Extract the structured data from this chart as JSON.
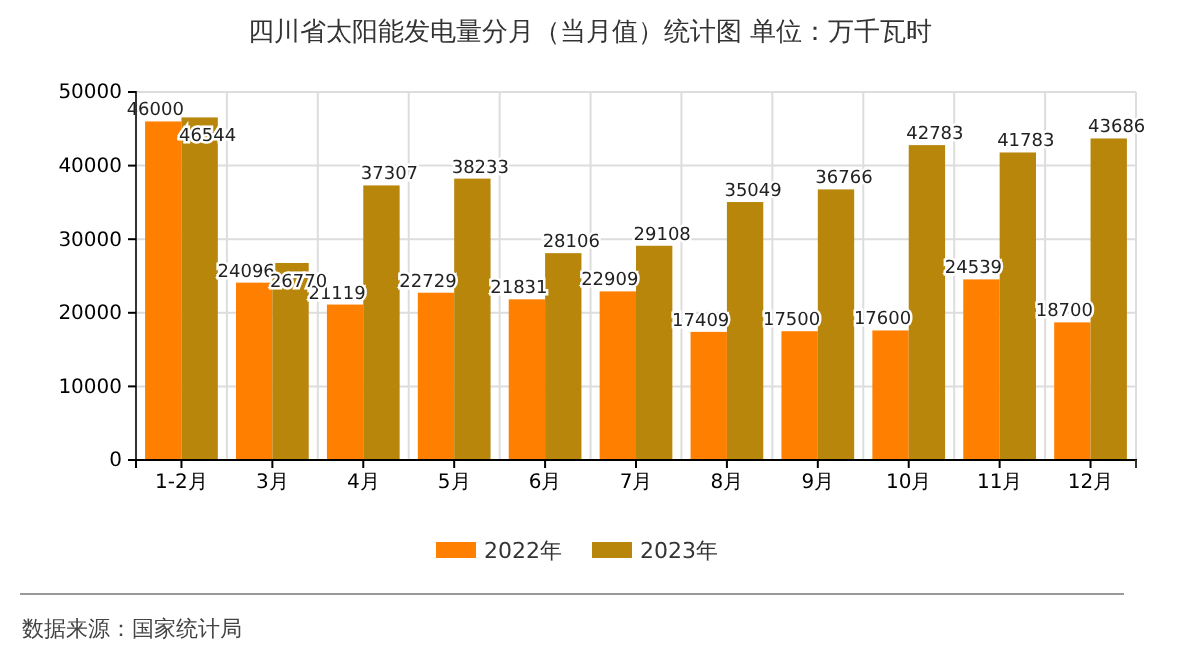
{
  "chart_data": {
    "type": "bar",
    "title": "四川省太阳能发电量分月（当月值）统计图  单位：万千瓦时",
    "categories": [
      "1-2月",
      "3月",
      "4月",
      "5月",
      "6月",
      "7月",
      "8月",
      "9月",
      "10月",
      "11月",
      "12月"
    ],
    "series": [
      {
        "name": "2022年",
        "color": "#ff8000",
        "values": [
          46000,
          24096,
          21119,
          22729,
          21831,
          22909,
          17409,
          17500,
          17600,
          24539,
          18700
        ]
      },
      {
        "name": "2023年",
        "color": "#b8860b",
        "values": [
          46544,
          26770,
          37307,
          38233,
          28106,
          29108,
          35049,
          36766,
          42783,
          41783,
          43686
        ]
      }
    ],
    "ylim": [
      0,
      50000
    ],
    "yticks": [
      0,
      10000,
      20000,
      30000,
      40000,
      50000
    ],
    "grid": true,
    "legend": "bottom",
    "data_labels": true,
    "annotations": [
      "数据来源：国家统计局"
    ]
  }
}
